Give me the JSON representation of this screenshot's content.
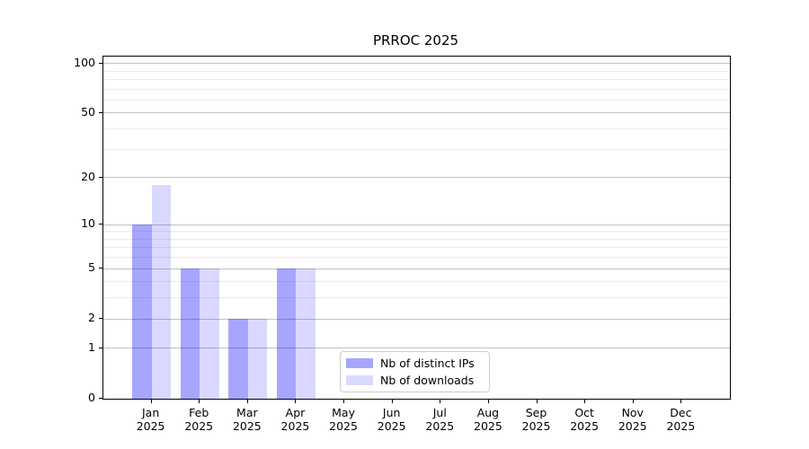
{
  "figure": {
    "title": "PRROC 2025"
  },
  "chart_data": {
    "type": "bar",
    "title": "PRROC 2025",
    "categories": [
      "Jan 2025",
      "Feb 2025",
      "Mar 2025",
      "Apr 2025",
      "May 2025",
      "Jun 2025",
      "Jul 2025",
      "Aug 2025",
      "Sep 2025",
      "Oct 2025",
      "Nov 2025",
      "Dec 2025"
    ],
    "series": [
      {
        "name": "Nb of distinct IPs",
        "color": "#a6a6ff",
        "fill": "rgba(0,0,255,0.35)",
        "values": [
          10,
          5,
          2,
          5,
          0,
          0,
          0,
          0,
          0,
          0,
          0,
          0
        ]
      },
      {
        "name": "Nb of downloads",
        "color": "#d9d9ff",
        "fill": "rgba(0,0,255,0.15)",
        "values": [
          18,
          5,
          2,
          5,
          0,
          0,
          0,
          0,
          0,
          0,
          0,
          0
        ]
      }
    ],
    "xlabel": "",
    "ylabel": "",
    "yscale": "log1p",
    "ylim": [
      0,
      110
    ],
    "yticks": [
      0,
      1,
      2,
      5,
      10,
      20,
      50,
      100
    ],
    "minor_yticks": [
      3,
      4,
      6,
      7,
      8,
      9,
      30,
      40,
      60,
      70,
      80,
      90
    ],
    "grid": true,
    "legend_position": "lower center",
    "colors": {
      "grid_major": "#c2c2c2",
      "grid_minor": "#ebebeb",
      "spine": "#000000",
      "background": "#ffffff"
    }
  }
}
